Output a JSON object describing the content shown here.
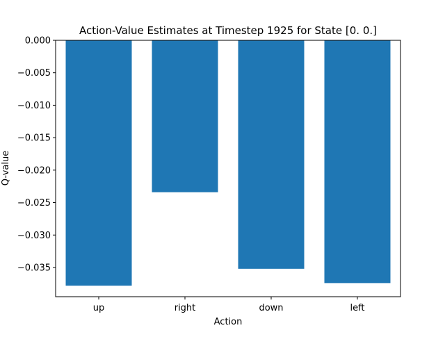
{
  "chart_data": {
    "type": "bar",
    "title": "Action-Value Estimates at Timestep 1925 for State [0. 0.]",
    "xlabel": "Action",
    "ylabel": "Q-value",
    "categories": [
      "up",
      "right",
      "down",
      "left"
    ],
    "values": [
      -0.0378,
      -0.0234,
      -0.0352,
      -0.0374
    ],
    "ylim": [
      -0.0395,
      0.0
    ],
    "yticks": [
      0.0,
      -0.005,
      -0.01,
      -0.015,
      -0.02,
      -0.025,
      -0.03,
      -0.035
    ],
    "ytick_labels": [
      "0.000",
      "−0.005",
      "−0.010",
      "−0.015",
      "−0.020",
      "−0.025",
      "−0.030",
      "−0.035"
    ],
    "grid": false,
    "legend": "none",
    "bar_color": "#1f77b4"
  }
}
